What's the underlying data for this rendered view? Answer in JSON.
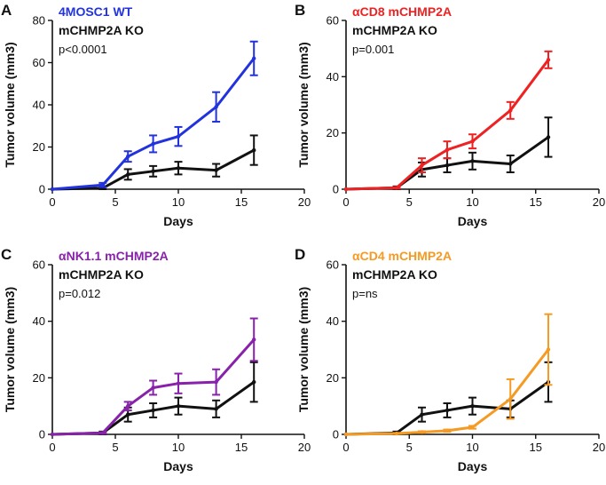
{
  "figure": {
    "shared": {
      "xlabel": "Days",
      "ylabel": "Tumor volume (mm3)",
      "ko_label": "mCHMP2A KO",
      "ko_color": "#111111",
      "x_range": [
        0,
        20
      ],
      "x_ticks": [
        0,
        5,
        10,
        15,
        20
      ],
      "x": [
        0,
        4,
        6,
        8,
        10,
        13,
        16
      ]
    }
  },
  "chart_data": [
    {
      "type": "line",
      "panel_letter": "A",
      "ylim": [
        0,
        80
      ],
      "y_ticks": [
        0,
        20,
        40,
        60,
        80
      ],
      "xlabel": "Days",
      "ylabel": "Tumor volume (mm3)",
      "stat": "p<0.0001",
      "series": [
        {
          "name": "4MOSC1 WT",
          "color": "#2233dd",
          "x": [
            0,
            4,
            6,
            8,
            10,
            13,
            16
          ],
          "values": [
            0,
            2,
            15.5,
            21.5,
            25,
            39,
            62
          ],
          "errors": [
            0,
            1,
            2.5,
            4,
            4.5,
            7,
            8
          ]
        },
        {
          "name": "mCHMP2A KO",
          "color": "#111111",
          "x": [
            0,
            4,
            6,
            8,
            10,
            13,
            16
          ],
          "values": [
            0,
            0.5,
            7,
            8.5,
            10,
            9,
            18.5
          ],
          "errors": [
            0,
            0.5,
            2.5,
            2.5,
            3,
            3,
            7
          ]
        }
      ]
    },
    {
      "type": "line",
      "panel_letter": "B",
      "ylim": [
        0,
        60
      ],
      "y_ticks": [
        0,
        20,
        40,
        60
      ],
      "xlabel": "Days",
      "ylabel": "Tumor volume (mm3)",
      "stat": "p=0.001",
      "series": [
        {
          "name": "αCD8 mCHMP2A",
          "color": "#ee2222",
          "x": [
            0,
            4,
            6,
            8,
            10,
            13,
            16
          ],
          "values": [
            0,
            0.5,
            8.5,
            14,
            17,
            28,
            46
          ],
          "errors": [
            0,
            0.3,
            2.5,
            3,
            2.5,
            3,
            3
          ]
        },
        {
          "name": "mCHMP2A KO",
          "color": "#111111",
          "x": [
            0,
            4,
            6,
            8,
            10,
            13,
            16
          ],
          "values": [
            0,
            0.5,
            7,
            8.5,
            10,
            9,
            18.5
          ],
          "errors": [
            0,
            0.5,
            2.5,
            2.5,
            3,
            3,
            7
          ]
        }
      ]
    },
    {
      "type": "line",
      "panel_letter": "C",
      "ylim": [
        0,
        60
      ],
      "y_ticks": [
        0,
        20,
        40,
        60
      ],
      "xlabel": "Days",
      "ylabel": "Tumor volume (mm3)",
      "stat": "p=0.012",
      "series": [
        {
          "name": "αNK1.1 mCHMP2A",
          "color": "#8822aa",
          "x": [
            0,
            4,
            6,
            8,
            10,
            13,
            16
          ],
          "values": [
            0,
            0.5,
            10,
            16.5,
            18,
            18.5,
            33.5
          ],
          "errors": [
            0,
            0.3,
            1.5,
            2.5,
            3.5,
            4.5,
            7.5
          ]
        },
        {
          "name": "mCHMP2A KO",
          "color": "#111111",
          "x": [
            0,
            4,
            6,
            8,
            10,
            13,
            16
          ],
          "values": [
            0,
            0.5,
            7,
            8.5,
            10,
            9,
            18.5
          ],
          "errors": [
            0,
            0.5,
            2.5,
            2.5,
            3,
            3,
            7
          ]
        }
      ]
    },
    {
      "type": "line",
      "panel_letter": "D",
      "ylim": [
        0,
        60
      ],
      "y_ticks": [
        0,
        20,
        40,
        60
      ],
      "xlabel": "Days",
      "ylabel": "Tumor volume (mm3)",
      "stat": "p=ns",
      "series": [
        {
          "name": "αCD4 mCHMP2A",
          "color": "#f59a22",
          "x": [
            0,
            4,
            6,
            8,
            10,
            13,
            16
          ],
          "values": [
            0,
            0.3,
            0.8,
            1.3,
            2.5,
            12.5,
            30
          ],
          "errors": [
            0,
            0.2,
            0.3,
            0.4,
            0.5,
            7,
            12.5
          ]
        },
        {
          "name": "mCHMP2A KO",
          "color": "#111111",
          "x": [
            0,
            4,
            6,
            8,
            10,
            13,
            16
          ],
          "values": [
            0,
            0.5,
            7,
            8.5,
            10,
            9,
            18.5
          ],
          "errors": [
            0,
            0.5,
            2.5,
            2.5,
            3,
            3,
            7
          ]
        }
      ]
    }
  ]
}
